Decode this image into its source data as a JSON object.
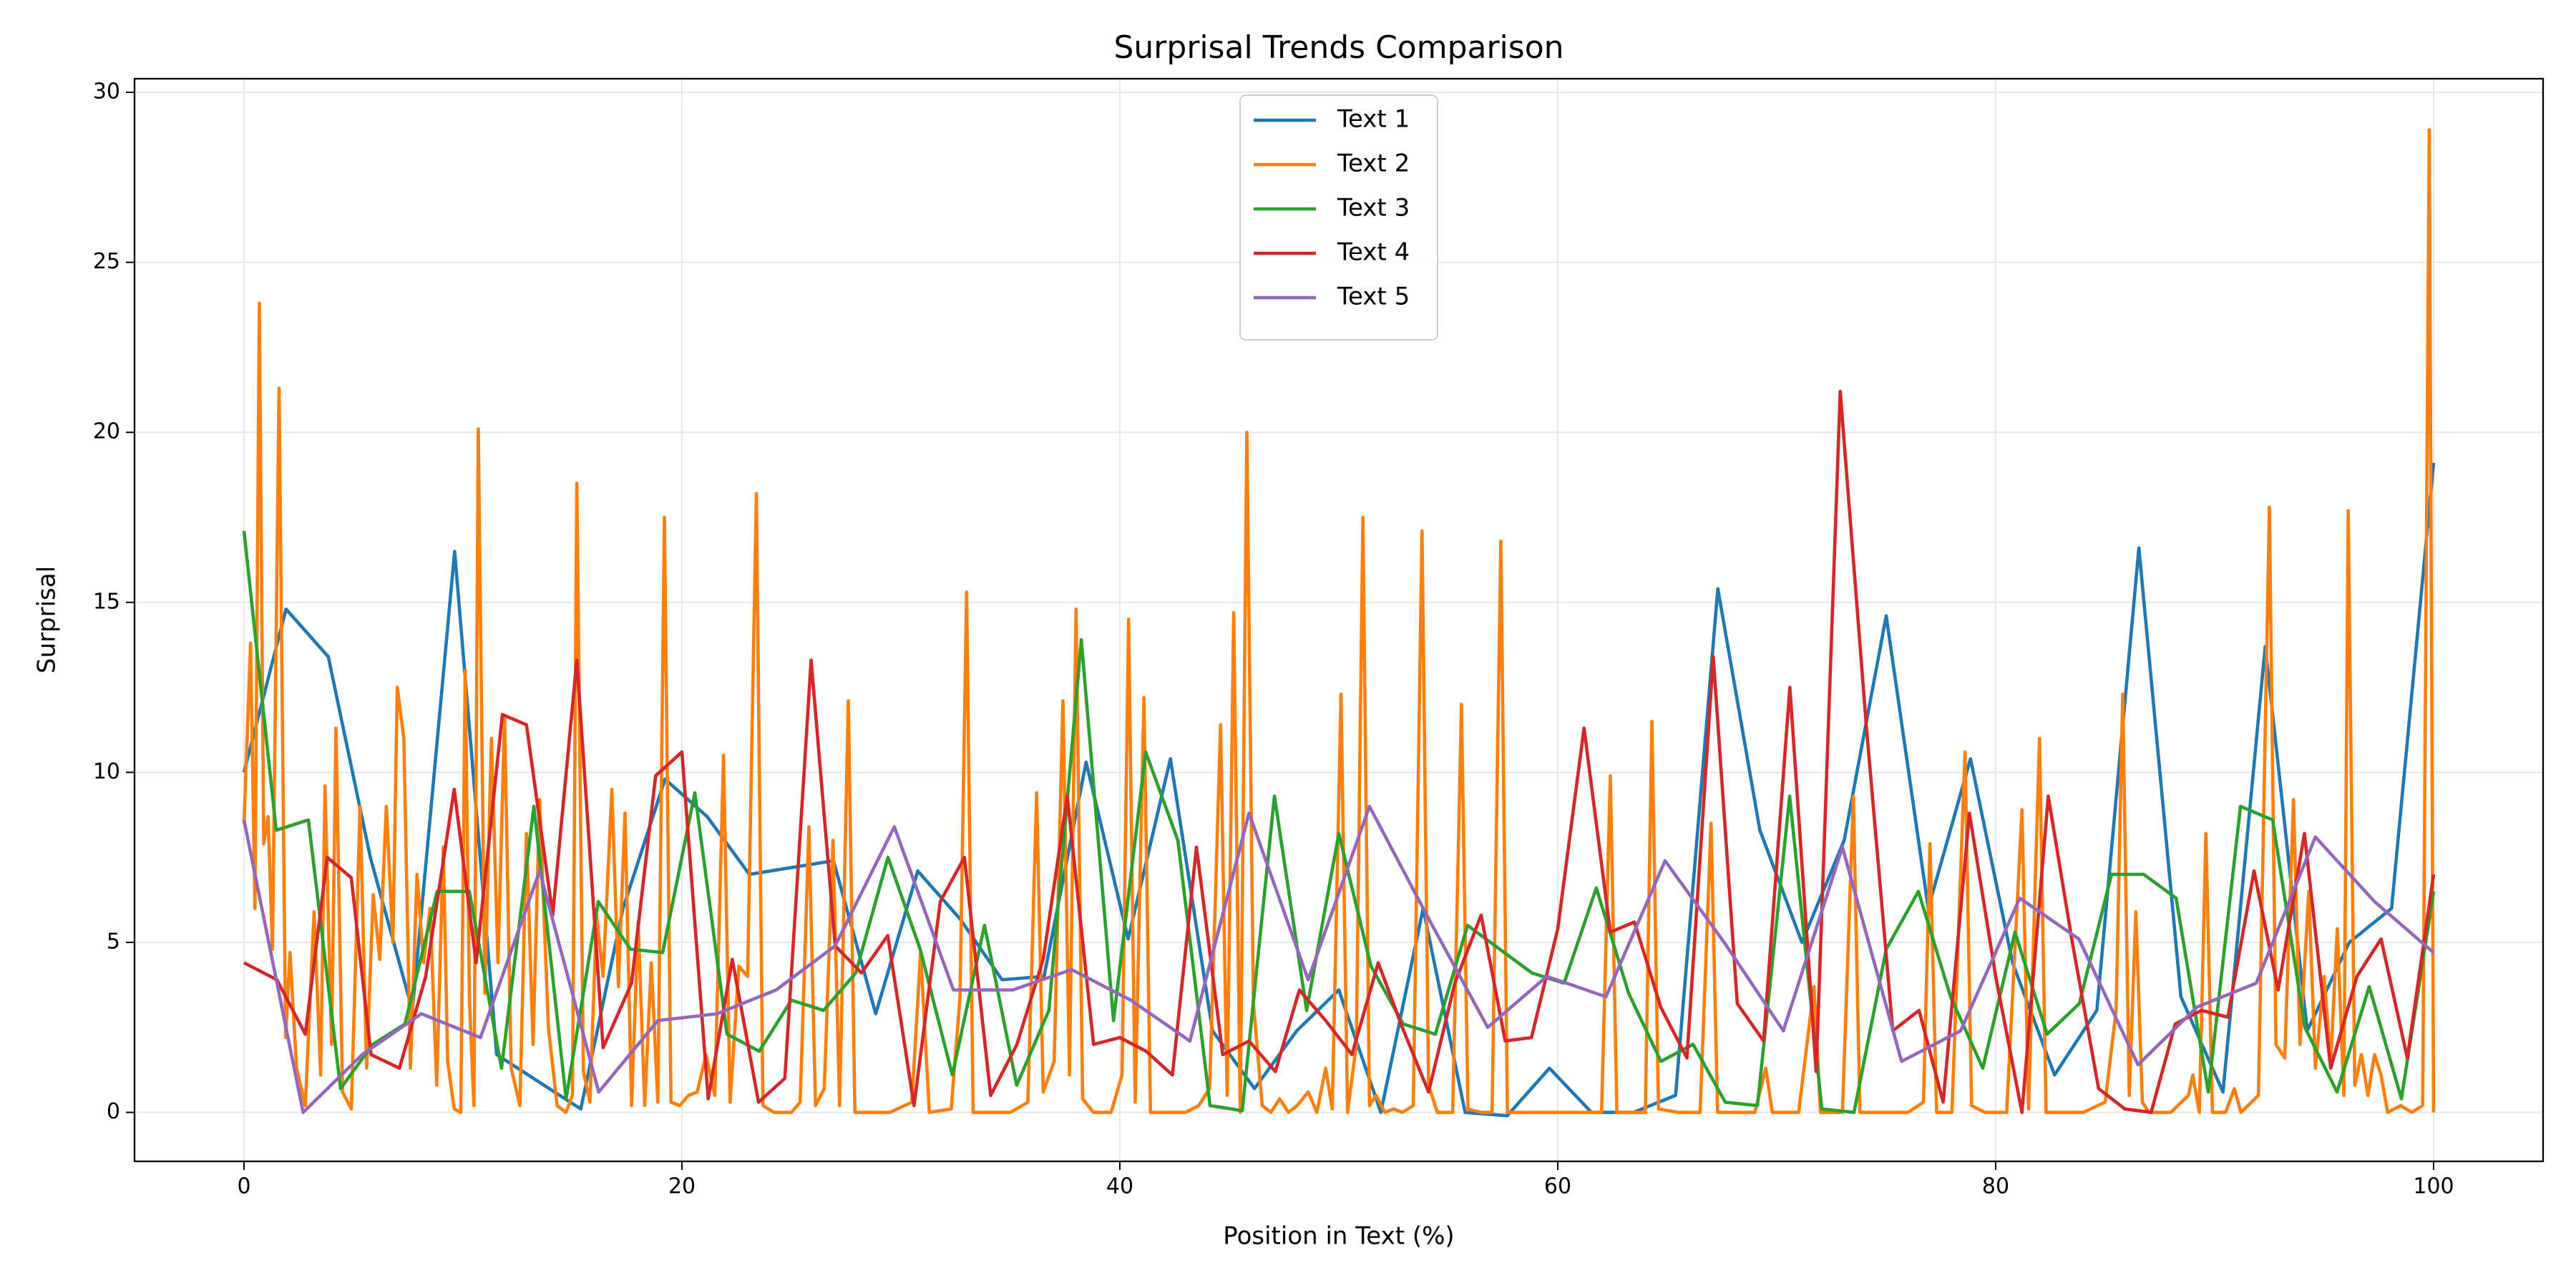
{
  "chart_data": {
    "type": "line",
    "title": "Surprisal Trends Comparison",
    "xlabel": "Position in Text (%)",
    "ylabel": "Surprisal",
    "xlim": [
      -5,
      105
    ],
    "ylim": [
      -1.44,
      30.4
    ],
    "xticks": [
      0,
      20,
      40,
      60,
      80,
      100
    ],
    "yticks": [
      0,
      5,
      10,
      15,
      20,
      25,
      30
    ],
    "grid": true,
    "legend": "upper center",
    "series": [
      {
        "name": "Text 1",
        "color": "#1f77b4",
        "x": [
          0,
          1.92,
          3.85,
          5.77,
          7.69,
          9.62,
          11.54,
          13.46,
          15.38,
          17.31,
          19.23,
          21.15,
          23.08,
          25,
          26.92,
          28.85,
          30.77,
          32.69,
          34.62,
          36.54,
          38.46,
          40.38,
          42.31,
          44.23,
          46.15,
          48.08,
          50,
          51.92,
          53.85,
          55.77,
          57.69,
          59.62,
          61.54,
          63.46,
          65.38,
          67.31,
          69.23,
          71.15,
          73.08,
          75,
          76.92,
          78.85,
          80.77,
          82.69,
          84.62,
          86.54,
          88.46,
          90.38,
          92.31,
          94.23,
          96.15,
          98.08,
          100
        ],
        "values": [
          10,
          14.8,
          13.4,
          7.5,
          3,
          16.5,
          1.7,
          0.9,
          0.1,
          6,
          9.8,
          8.7,
          7,
          7.2,
          7.4,
          2.9,
          7.1,
          5.7,
          3.9,
          4,
          10.3,
          5.1,
          10.4,
          2.4,
          0.7,
          2.4,
          3.6,
          0,
          6,
          0,
          -0.1,
          1.3,
          0,
          0,
          0.5,
          15.4,
          8.3,
          5,
          8,
          14.6,
          6,
          10.4,
          4.4,
          1.1,
          3,
          16.6,
          3.4,
          0.6,
          13.7,
          2.4,
          5,
          6,
          19.1
        ]
      },
      {
        "name": "Text 2",
        "color": "#ff7f0e",
        "x": [
          0,
          0.3,
          0.5,
          0.7,
          0.9,
          1.1,
          1.3,
          1.6,
          1.9,
          2.1,
          2.4,
          2.8,
          3.2,
          3.5,
          3.7,
          4,
          4.2,
          4.5,
          4.9,
          5.3,
          5.6,
          5.9,
          6.2,
          6.5,
          6.8,
          7,
          7.3,
          7.6,
          7.9,
          8.2,
          8.5,
          8.8,
          9.1,
          9.3,
          9.6,
          9.9,
          10.1,
          10.3,
          10.5,
          10.7,
          11,
          11.3,
          11.6,
          11.9,
          12.2,
          12.6,
          12.9,
          13.2,
          13.5,
          13.9,
          14.3,
          14.7,
          15,
          15.2,
          15.5,
          15.8,
          16.1,
          16.4,
          16.8,
          17.1,
          17.4,
          17.7,
          18,
          18.3,
          18.6,
          18.9,
          19.2,
          19.5,
          19.9,
          20.3,
          20.7,
          21.1,
          21.5,
          21.9,
          22.2,
          22.6,
          23,
          23.4,
          23.7,
          24.2,
          25,
          25.4,
          25.8,
          26.1,
          26.5,
          26.9,
          27.2,
          27.6,
          27.9,
          28.5,
          29.5,
          30.5,
          30.9,
          31.3,
          32.3,
          32.7,
          33,
          33.3,
          34,
          35,
          35.8,
          36.2,
          36.5,
          37,
          37.4,
          37.7,
          38,
          38.3,
          38.8,
          39.6,
          40.1,
          40.4,
          40.7,
          41.1,
          41.4,
          42,
          43,
          43.6,
          44.1,
          44.6,
          44.9,
          45.2,
          45.5,
          45.8,
          46.1,
          46.5,
          46.9,
          47.3,
          47.7,
          48.1,
          48.6,
          49,
          49.4,
          49.7,
          50.1,
          50.4,
          50.8,
          51.1,
          51.4,
          51.7,
          52.1,
          52.5,
          52.9,
          53.4,
          53.8,
          54.1,
          54.5,
          55.2,
          55.6,
          55.9,
          56.5,
          57,
          57.4,
          57.7,
          58.5,
          60,
          61,
          62,
          62.4,
          62.7,
          63.5,
          64,
          64.3,
          64.6,
          65.5,
          66.5,
          67,
          67.3,
          68,
          69,
          69.5,
          69.8,
          71,
          71.7,
          72,
          73,
          73.5,
          73.8,
          75,
          76,
          76.7,
          77,
          77.3,
          78,
          78.6,
          78.9,
          79.5,
          80.5,
          81.2,
          81.5,
          82,
          82.3,
          83,
          84,
          85,
          85.5,
          85.8,
          86.1,
          86.4,
          86.7,
          87,
          88,
          88.8,
          89,
          89.3,
          89.6,
          89.9,
          90.5,
          90.9,
          91.2,
          92,
          92.5,
          92.8,
          93.2,
          93.6,
          93.9,
          94.3,
          94.6,
          95,
          95.3,
          95.6,
          95.9,
          96.1,
          96.4,
          96.7,
          97,
          97.3,
          97.6,
          97.9,
          98.5,
          99,
          99.5,
          99.8,
          100
        ],
        "values": [
          8.5,
          13.8,
          6,
          23.8,
          7.9,
          8.7,
          4.8,
          21.3,
          2.2,
          4.7,
          1.3,
          0.2,
          5.9,
          1.1,
          9.6,
          2,
          11.3,
          0.6,
          0.1,
          9,
          1.3,
          6.4,
          4.5,
          9,
          5,
          12.5,
          11,
          1.3,
          7,
          4.4,
          6,
          0.8,
          7.8,
          1.5,
          0.1,
          0,
          13,
          3.2,
          0.2,
          20.1,
          3.5,
          11,
          4.4,
          11.6,
          1.3,
          0.2,
          8.2,
          2,
          9.2,
          2.5,
          0.2,
          0,
          0.5,
          18.5,
          1.2,
          0.3,
          5.8,
          4,
          9.5,
          3.7,
          8.8,
          0.2,
          5.6,
          0.2,
          4.4,
          0.3,
          17.5,
          0.3,
          0.2,
          0.5,
          0.6,
          1.7,
          0.5,
          10.5,
          0.3,
          4.3,
          4,
          18.2,
          0.2,
          0,
          0,
          0.3,
          8.4,
          0.2,
          0.7,
          8,
          0.2,
          12.1,
          0,
          0,
          0,
          0.3,
          4.7,
          0,
          0.1,
          3.4,
          15.3,
          0,
          0,
          0,
          0.3,
          9.4,
          0.6,
          1.5,
          12.1,
          1.1,
          14.8,
          0.4,
          0,
          0,
          1.1,
          14.5,
          0.3,
          12.2,
          0,
          0,
          0,
          0.2,
          0.7,
          11.4,
          0.5,
          14.7,
          0,
          20,
          3.2,
          0.2,
          0,
          0.4,
          0,
          0.2,
          0.6,
          0,
          1.3,
          0.1,
          12.3,
          0,
          2,
          17.5,
          0.2,
          0.5,
          0,
          0.1,
          0,
          0.2,
          17.1,
          0.8,
          0,
          0,
          12,
          0.1,
          0,
          0,
          16.8,
          0,
          0,
          0,
          0,
          0,
          9.9,
          0,
          0,
          0,
          11.5,
          0.1,
          0,
          0,
          8.5,
          0,
          0,
          0,
          1.3,
          0,
          0,
          3.7,
          0,
          0,
          9.3,
          0,
          0,
          0,
          0.3,
          7.9,
          0,
          0,
          10.6,
          0.2,
          0,
          0,
          8.9,
          0.1,
          11,
          0,
          0,
          0,
          0.3,
          3,
          12.3,
          0.5,
          5.9,
          0.3,
          0,
          0,
          0.5,
          1.1,
          0,
          8.2,
          0,
          0,
          0.7,
          0,
          0.5,
          17.8,
          2,
          1.6,
          9.2,
          2,
          6.5,
          1.3,
          4,
          1.5,
          5.4,
          0.5,
          17.7,
          0.8,
          1.7,
          0.5,
          1.7,
          1.1,
          0,
          0.2,
          0,
          0.2,
          28.9,
          0
        ]
      },
      {
        "name": "Text 3",
        "color": "#2ca02c",
        "x": [
          0,
          1.47,
          2.94,
          4.41,
          5.88,
          7.35,
          8.82,
          10.29,
          11.76,
          13.24,
          14.71,
          16.18,
          17.65,
          19.12,
          20.59,
          22.06,
          23.53,
          25,
          26.47,
          27.94,
          29.41,
          30.88,
          32.35,
          33.82,
          35.29,
          36.76,
          38.24,
          39.71,
          41.18,
          42.65,
          44.12,
          45.59,
          47.06,
          48.53,
          50,
          51.47,
          52.94,
          54.41,
          55.88,
          57.35,
          58.82,
          60.29,
          61.76,
          63.24,
          64.71,
          66.18,
          67.65,
          69.12,
          70.59,
          72.06,
          73.53,
          75,
          76.47,
          77.94,
          79.41,
          80.88,
          82.35,
          83.82,
          85.29,
          86.76,
          88.24,
          89.71,
          91.18,
          92.65,
          94.12,
          95.59,
          97.06,
          98.53,
          100
        ],
        "values": [
          17.1,
          8.3,
          8.6,
          0.7,
          2,
          2.6,
          6.5,
          6.5,
          1.3,
          9,
          0.4,
          6.2,
          4.8,
          4.7,
          9.4,
          2.3,
          1.8,
          3.3,
          3,
          4.1,
          7.5,
          4.8,
          1.1,
          5.5,
          0.8,
          3,
          13.9,
          2.7,
          10.6,
          8,
          0.2,
          0.05,
          9.3,
          3,
          8.2,
          4.3,
          2.6,
          2.3,
          5.5,
          4.8,
          4.1,
          3.8,
          6.6,
          3.5,
          1.5,
          2,
          0.3,
          0.2,
          9.3,
          0.1,
          0,
          4.8,
          6.5,
          3.4,
          1.3,
          5.3,
          2.3,
          3.2,
          7,
          7,
          6.3,
          0.6,
          9,
          8.6,
          2.5,
          0.6,
          3.7,
          0.4,
          6.5
        ]
      },
      {
        "name": "Text 4",
        "color": "#d62728",
        "x": [
          0,
          1.5,
          2.8,
          3.8,
          4.9,
          5.8,
          7.1,
          8.3,
          9.6,
          10.6,
          11.8,
          12.9,
          14.1,
          15.2,
          16.4,
          17.7,
          18.8,
          20,
          21.2,
          22.3,
          23.5,
          24.7,
          25.9,
          27,
          28.2,
          29.4,
          30.6,
          31.8,
          32.9,
          34.1,
          35.3,
          36.5,
          37.6,
          38.8,
          40,
          41.2,
          42.4,
          43.5,
          44.7,
          45.9,
          47.1,
          48.2,
          49.4,
          50.6,
          51.8,
          52.9,
          54.1,
          55.3,
          56.5,
          57.6,
          58.8,
          60,
          61.2,
          62.4,
          63.5,
          64.7,
          65.9,
          67.1,
          68.2,
          69.4,
          70.6,
          71.8,
          72.9,
          74.1,
          75.3,
          76.5,
          77.6,
          78.8,
          80,
          81.2,
          82.4,
          83.5,
          84.7,
          85.9,
          87.1,
          88.2,
          89.4,
          90.6,
          91.8,
          92.9,
          94.1,
          95.3,
          96.5,
          97.6,
          98.8,
          100
        ],
        "values": [
          4.4,
          3.9,
          2.3,
          7.5,
          6.9,
          1.7,
          1.3,
          4,
          9.5,
          4.4,
          11.7,
          11.4,
          5.8,
          13.3,
          1.9,
          3.8,
          9.9,
          10.6,
          0.4,
          4.5,
          0.3,
          1,
          13.3,
          4.9,
          4.1,
          5.2,
          0.2,
          6.2,
          7.5,
          0.5,
          2,
          4.5,
          9.3,
          2,
          2.2,
          1.8,
          1.1,
          7.8,
          1.7,
          2.1,
          1.2,
          3.6,
          2.7,
          1.7,
          4.4,
          2.5,
          0.6,
          3.8,
          5.8,
          2.1,
          2.2,
          5.4,
          11.3,
          5.3,
          5.6,
          3.1,
          1.6,
          13.4,
          3.2,
          2.1,
          12.5,
          1.2,
          21.2,
          11.3,
          2.4,
          3,
          0.3,
          8.8,
          4,
          0,
          9.3,
          5,
          0.7,
          0.1,
          0,
          2.6,
          3,
          2.8,
          7.1,
          3.6,
          8.2,
          1.3,
          4,
          5.1,
          1.6,
          7
        ]
      },
      {
        "name": "Text 5",
        "color": "#9467bd",
        "x": [
          0,
          2.7,
          5.4,
          8.1,
          10.8,
          13.5,
          16.2,
          18.9,
          21.6,
          24.3,
          27,
          29.7,
          32.4,
          35.1,
          37.8,
          40.5,
          43.2,
          45.9,
          48.6,
          51.4,
          54.1,
          56.8,
          59.5,
          62.2,
          64.9,
          67.6,
          70.3,
          73,
          75.7,
          78.4,
          81.1,
          83.8,
          86.5,
          89.2,
          91.9,
          94.6,
          97.3,
          100
        ],
        "values": [
          8.6,
          0,
          1.7,
          2.9,
          2.2,
          7.1,
          0.6,
          2.7,
          2.9,
          3.6,
          4.9,
          8.4,
          3.6,
          3.6,
          4.2,
          3.3,
          2.1,
          8.8,
          3.9,
          9,
          5.7,
          2.5,
          4,
          3.4,
          7.4,
          5,
          2.4,
          7.8,
          1.5,
          2.4,
          6.3,
          5.1,
          1.4,
          3.1,
          3.8,
          8.1,
          6.2,
          4.7
        ]
      }
    ]
  }
}
